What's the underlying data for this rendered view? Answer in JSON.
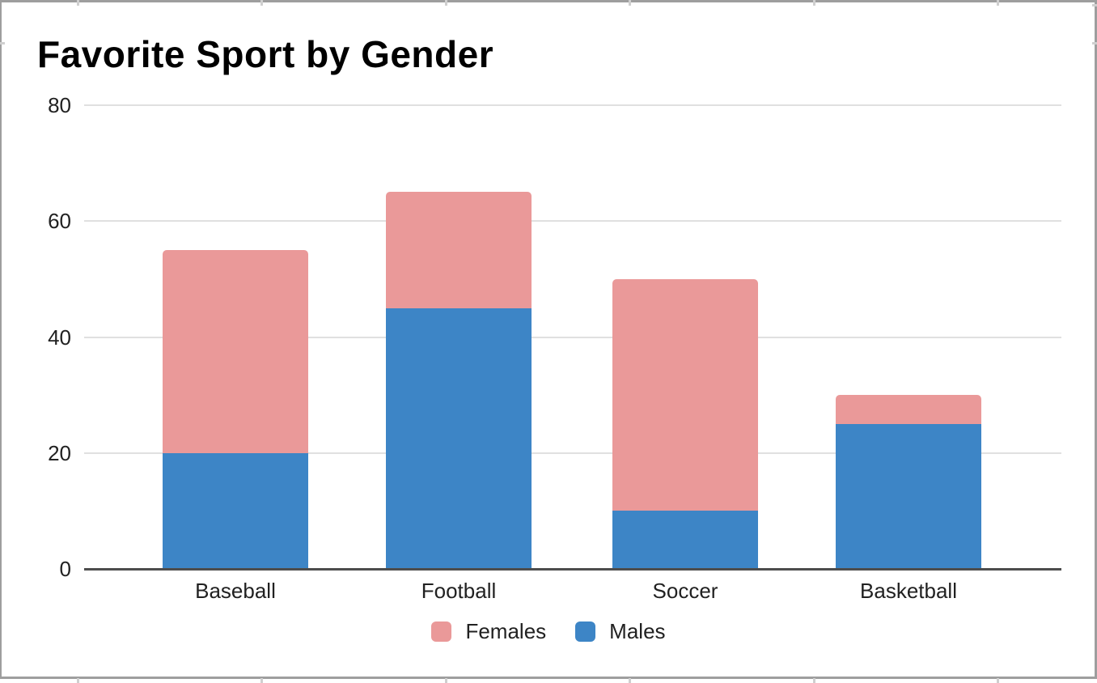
{
  "chart_data": {
    "type": "bar",
    "stacked": true,
    "title": "Favorite Sport by Gender",
    "categories": [
      "Baseball",
      "Football",
      "Soccer",
      "Basketball"
    ],
    "series": [
      {
        "name": "Males",
        "color": "#3d85c6",
        "values": [
          20,
          45,
          10,
          25
        ]
      },
      {
        "name": "Females",
        "color": "#ea9999",
        "values": [
          35,
          20,
          40,
          5
        ]
      }
    ],
    "stack_totals": [
      55,
      65,
      50,
      30
    ],
    "legend": [
      {
        "label": "Females",
        "color": "#ea9999"
      },
      {
        "label": "Males",
        "color": "#3d85c6"
      }
    ],
    "legend_position": "bottom",
    "xlabel": "",
    "ylabel": "",
    "y_axis": {
      "ticks": [
        0,
        20,
        40,
        60,
        80
      ],
      "min": 0,
      "max": 80
    },
    "grid": true
  },
  "colors": {
    "gridline": "#e0e0e0",
    "zero_axis": "#4d4d4d",
    "frame_border": "#9e9e9e",
    "label_text": "#212121",
    "title_text": "#000000",
    "background": "#ffffff"
  }
}
